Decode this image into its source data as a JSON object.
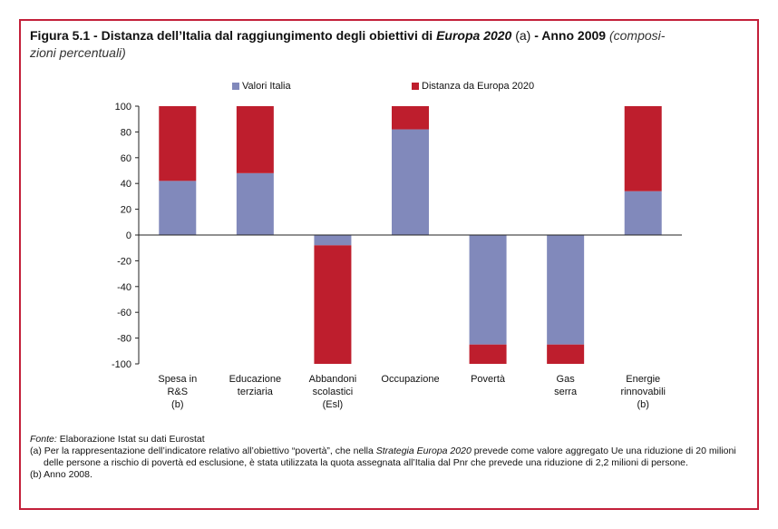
{
  "figure": {
    "label": "Figura 5.1",
    "sep1": " - Distanza dell’Italia dal raggiungimento degli obiettivi di ",
    "emph": "Europa 2020",
    "note_ref": " (a)",
    "sep2": " - Anno 2009 ",
    "subtitle_line1": "(composi-",
    "subtitle_line2": "zioni percentuali)"
  },
  "chart_data": {
    "type": "bar",
    "stacked": true,
    "categories": [
      [
        "Spesa in",
        "R&S",
        "(b)"
      ],
      [
        "Educazione",
        "terziaria",
        ""
      ],
      [
        "Abbandoni",
        "scolastici",
        "(Esl)"
      ],
      [
        "Occupazione",
        "",
        ""
      ],
      [
        "Povertà",
        "",
        ""
      ],
      [
        "Gas",
        "serra",
        ""
      ],
      [
        "Energie",
        "rinnovabili",
        "(b)"
      ]
    ],
    "series": [
      {
        "name": "Valori Italia",
        "color": "#8189bb",
        "values": [
          42,
          48,
          -8,
          82,
          -85,
          -85,
          34
        ]
      },
      {
        "name": "Distanza da Europa 2020",
        "color": "#be1e2d",
        "values": [
          58,
          52,
          -92,
          18,
          -15,
          -15,
          66
        ]
      }
    ],
    "ylim": [
      -100,
      100
    ],
    "yticks": [
      "100",
      "80",
      "60",
      "40",
      "20",
      "0",
      "-20",
      "-40",
      "-60",
      "-80",
      "-100"
    ],
    "legend": "top",
    "grid": false
  },
  "notes": {
    "fonte_label": "Fonte:",
    "fonte_text": " Elaborazione Istat su dati Eurostat",
    "a_part1": "(a) Per la rappresentazione dell’indicatore relativo all’obiettivo “povertà”, che nella ",
    "a_emph": "Strategia Europa 2020",
    "a_part2": " prevede come valore aggregato Ue una riduzione di 20 milioni delle persone a rischio di povertà ed esclusione, è stata utilizzata la quota assegnata all’Italia dal Pnr che prevede una riduzione di 2,2 milioni di persone.",
    "b": "(b) Anno 2008."
  }
}
